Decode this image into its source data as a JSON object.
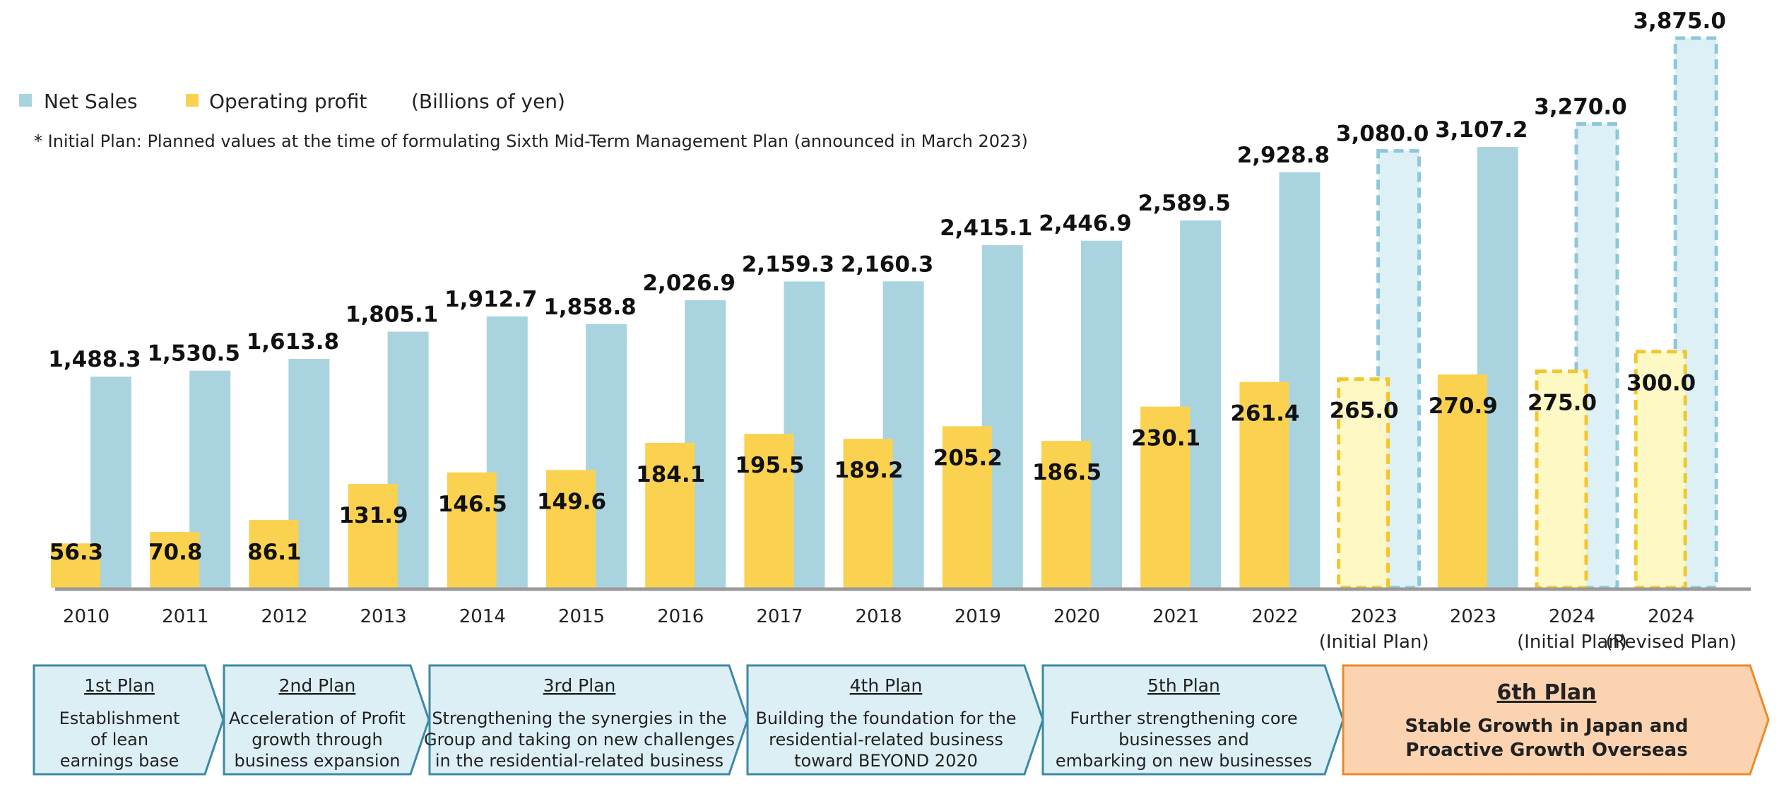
{
  "legend": {
    "net_sales": "Net Sales",
    "operating_profit": "Operating profit",
    "unit": "(Billions of yen)"
  },
  "note": "* Initial Plan: Planned values at the time of formulating Sixth Mid-Term Management Plan (announced in March 2023)",
  "colors": {
    "net_sales": "#a9d4df",
    "operating_profit": "#fad250",
    "plan_net_sales_fill": "#dcf0f5",
    "plan_net_sales_border": "#8ec7d8",
    "plan_profit_fill": "#fdf8c4",
    "plan_profit_border": "#f2c62c",
    "axis": "#999999",
    "plan_box_fill": "#dceff5",
    "plan_box_border": "#3c8aa3",
    "plan6_fill": "#fbd3b0",
    "plan6_border": "#e98a2a"
  },
  "chart_data": {
    "type": "bar",
    "ylabel": "(Billions of yen)",
    "ylim": [
      0,
      3875
    ],
    "categories": [
      [
        "2010"
      ],
      [
        "2011"
      ],
      [
        "2012"
      ],
      [
        "2013"
      ],
      [
        "2014"
      ],
      [
        "2015"
      ],
      [
        "2016"
      ],
      [
        "2017"
      ],
      [
        "2018"
      ],
      [
        "2019"
      ],
      [
        "2020"
      ],
      [
        "2021"
      ],
      [
        "2022"
      ],
      [
        "2023",
        "(Initial Plan)"
      ],
      [
        "2023"
      ],
      [
        "2024",
        "(Initial Plan)"
      ],
      [
        "2024",
        "(Revised Plan)"
      ]
    ],
    "planned": [
      false,
      false,
      false,
      false,
      false,
      false,
      false,
      false,
      false,
      false,
      false,
      false,
      false,
      true,
      false,
      true,
      true
    ],
    "series": [
      {
        "name": "Net Sales",
        "values": [
          1488.3,
          1530.5,
          1613.8,
          1805.1,
          1912.7,
          1858.8,
          2026.9,
          2159.3,
          2160.3,
          2415.1,
          2446.9,
          2589.5,
          2928.8,
          3080.0,
          3107.2,
          3270.0,
          3875.0
        ],
        "labels": [
          "1,488.3",
          "1,530.5",
          "1,613.8",
          "1,805.1",
          "1,912.7",
          "1,858.8",
          "2,026.9",
          "2,159.3",
          "2,160.3",
          "2,415.1",
          "2,446.9",
          "2,589.5",
          "2,928.8",
          "3,080.0",
          "3,107.2",
          "3,270.0",
          "3,875.0"
        ]
      },
      {
        "name": "Operating profit",
        "values": [
          56.3,
          70.8,
          86.1,
          131.9,
          146.5,
          149.6,
          184.1,
          195.5,
          189.2,
          205.2,
          186.5,
          230.1,
          261.4,
          265.0,
          270.9,
          275.0,
          300.0
        ],
        "labels": [
          "56.3",
          "70.8",
          "86.1",
          "131.9",
          "146.5",
          "149.6",
          "184.1",
          "195.5",
          "189.2",
          "205.2",
          "186.5",
          "230.1",
          "261.4",
          "265.0",
          "270.9",
          "275.0",
          "300.0"
        ]
      }
    ]
  },
  "plans": [
    {
      "title": "1st Plan",
      "lines": [
        "Establishment",
        "of lean",
        "earnings base"
      ]
    },
    {
      "title": "2nd Plan",
      "lines": [
        "Acceleration of Profit",
        "growth through",
        "business  expansion"
      ]
    },
    {
      "title": "3rd Plan",
      "lines": [
        "Strengthening the synergies in the",
        "Group and taking on new challenges",
        "in the residential-related business"
      ]
    },
    {
      "title": "4th Plan",
      "lines": [
        "Building the foundation for the",
        "residential-related business",
        "toward BEYOND 2020"
      ]
    },
    {
      "title": "5th Plan",
      "lines": [
        "Further strengthening core",
        "businesses and",
        "embarking on new businesses"
      ]
    },
    {
      "title": "6th Plan",
      "lines": [
        "Stable Growth in Japan and",
        "Proactive Growth Overseas"
      ]
    }
  ]
}
